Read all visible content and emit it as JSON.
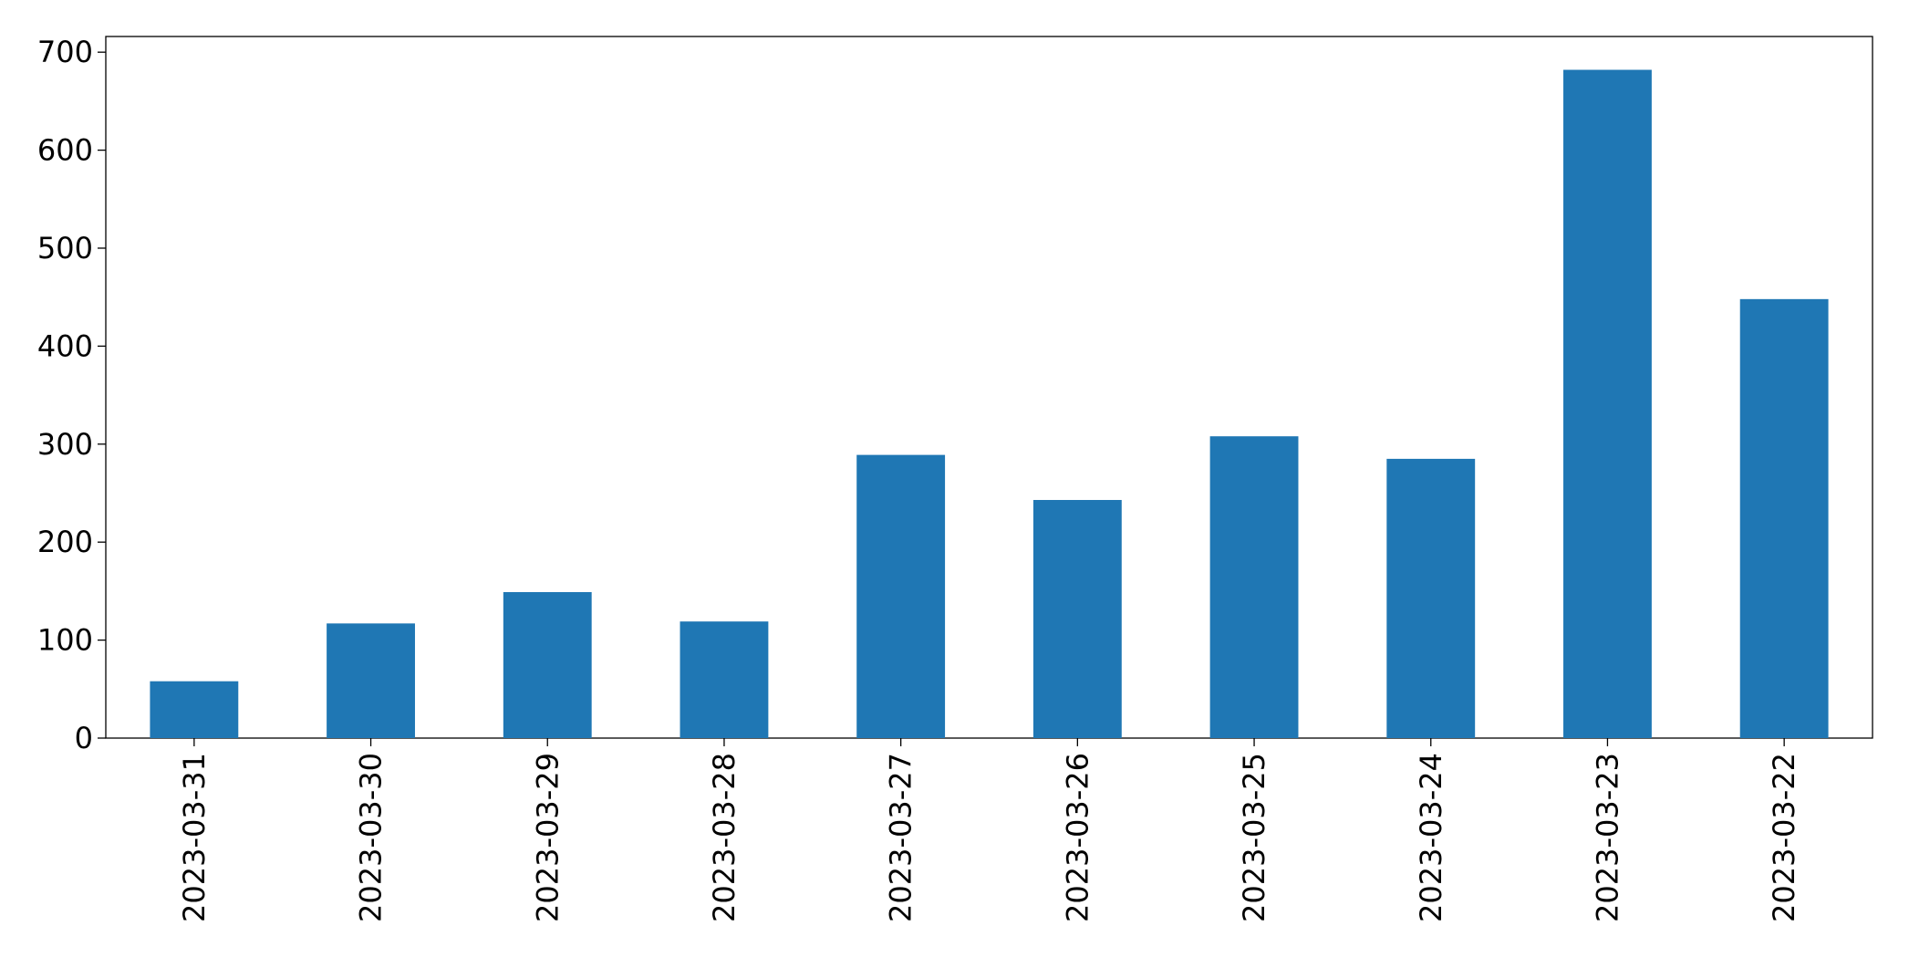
{
  "chart_data": {
    "type": "bar",
    "categories": [
      "2023-03-31",
      "2023-03-30",
      "2023-03-29",
      "2023-03-28",
      "2023-03-27",
      "2023-03-26",
      "2023-03-25",
      "2023-03-24",
      "2023-03-23",
      "2023-03-22"
    ],
    "values": [
      58,
      117,
      149,
      119,
      289,
      243,
      308,
      285,
      682,
      448
    ],
    "color": "#1f77b4",
    "ylim": [
      0,
      716
    ],
    "yticks": [
      0,
      100,
      200,
      300,
      400,
      500,
      600,
      700
    ],
    "grid": false
  }
}
